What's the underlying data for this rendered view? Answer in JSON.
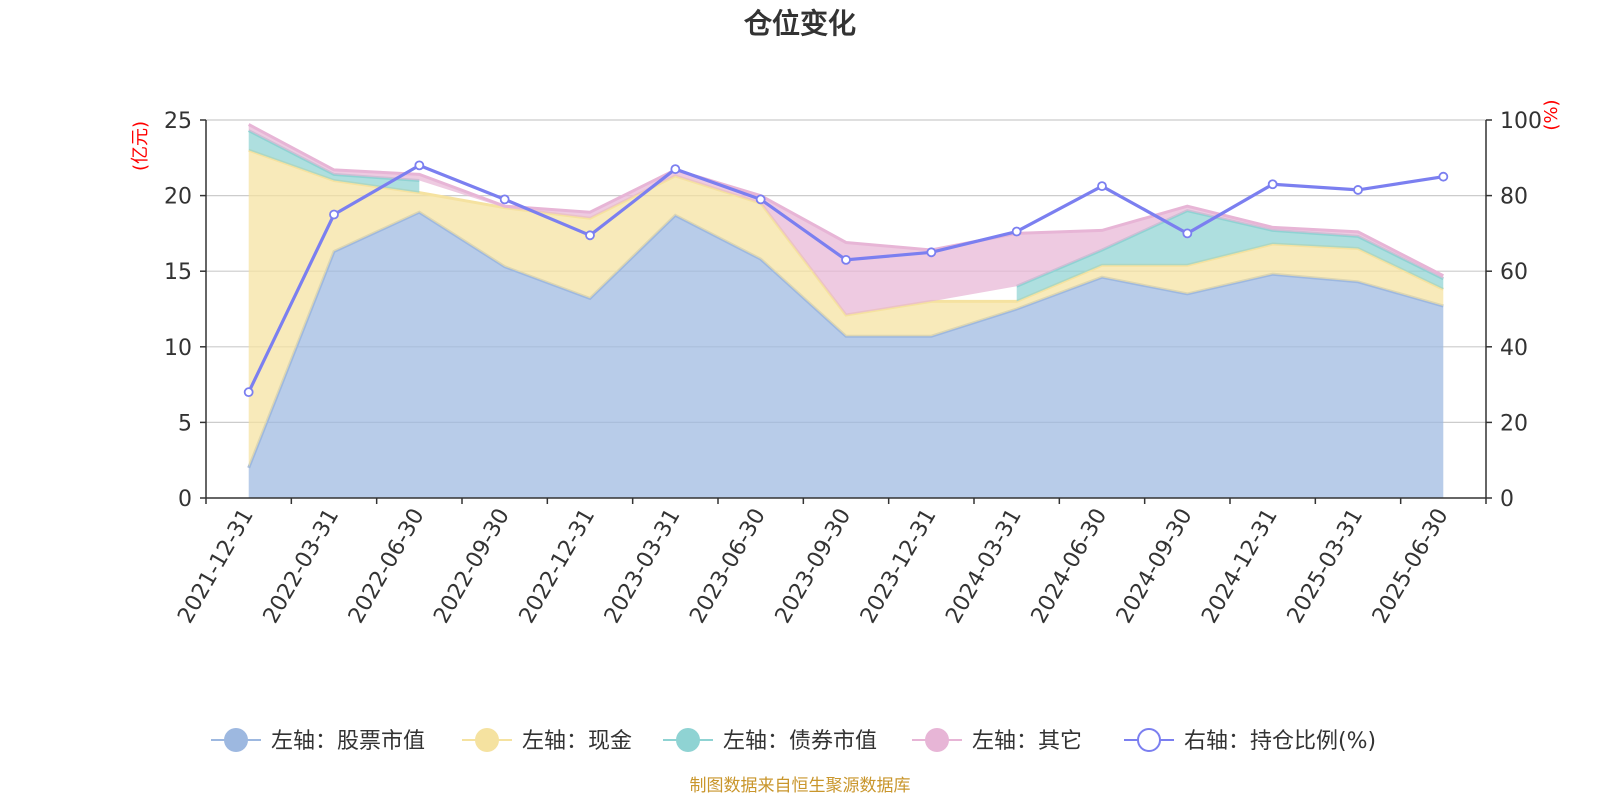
{
  "chart_data": {
    "type": "area",
    "title": "仓位变化",
    "left_unit": "(亿元)",
    "right_unit": "(%)",
    "left_ylim": [
      0,
      25
    ],
    "right_ylim": [
      0,
      100
    ],
    "left_ticks": [
      "0",
      "5",
      "10",
      "15",
      "20",
      "25"
    ],
    "right_ticks": [
      "0",
      "20",
      "40",
      "60",
      "80",
      "100"
    ],
    "grid": true,
    "legend_position": "bottom",
    "categories": [
      "2021-12-31",
      "2022-03-31",
      "2022-06-30",
      "2022-09-30",
      "2022-12-31",
      "2023-03-31",
      "2023-06-30",
      "2023-09-30",
      "2023-12-31",
      "2024-03-31",
      "2024-06-30",
      "2024-09-30",
      "2024-12-31",
      "2025-03-31",
      "2025-06-30"
    ],
    "series": [
      {
        "name": "左轴：股票市值",
        "axis": "left",
        "kind": "area",
        "color": "#9db8e0",
        "values": [
          2.0,
          16.3,
          18.9,
          15.3,
          13.2,
          18.7,
          15.8,
          10.7,
          10.7,
          12.5,
          14.6,
          13.5,
          14.8,
          14.3,
          12.7
        ]
      },
      {
        "name": "左轴：现金",
        "axis": "left",
        "kind": "area",
        "color": "#f5e2a0",
        "values": [
          21.0,
          4.7,
          1.3,
          3.9,
          5.3,
          2.6,
          3.7,
          1.4,
          2.3,
          0.5,
          0.8,
          1.9,
          2.0,
          2.2,
          1.1
        ]
      },
      {
        "name": "左轴：债券市值",
        "axis": "left",
        "kind": "area",
        "color": "#8fd3d3",
        "values": [
          1.3,
          0.4,
          0.8,
          null,
          null,
          null,
          null,
          null,
          null,
          1.0,
          1.0,
          3.6,
          0.9,
          0.8,
          0.7
        ]
      },
      {
        "name": "左轴：其它",
        "axis": "left",
        "kind": "area",
        "color": "#e7b5d6",
        "values": [
          0.4,
          0.3,
          0.4,
          0.1,
          0.4,
          0.4,
          0.5,
          4.8,
          3.4,
          3.5,
          1.3,
          0.3,
          0.2,
          0.3,
          0.2
        ]
      },
      {
        "name": "右轴：持仓比例(%)",
        "axis": "right",
        "kind": "line",
        "color": "#7b7ff0",
        "values": [
          28.0,
          75.0,
          88.0,
          79.0,
          69.5,
          87.0,
          79.0,
          63.0,
          65.0,
          70.5,
          82.5,
          70.0,
          83.0,
          81.5,
          85.0
        ]
      }
    ],
    "source": "制图数据来自恒生聚源数据库"
  }
}
